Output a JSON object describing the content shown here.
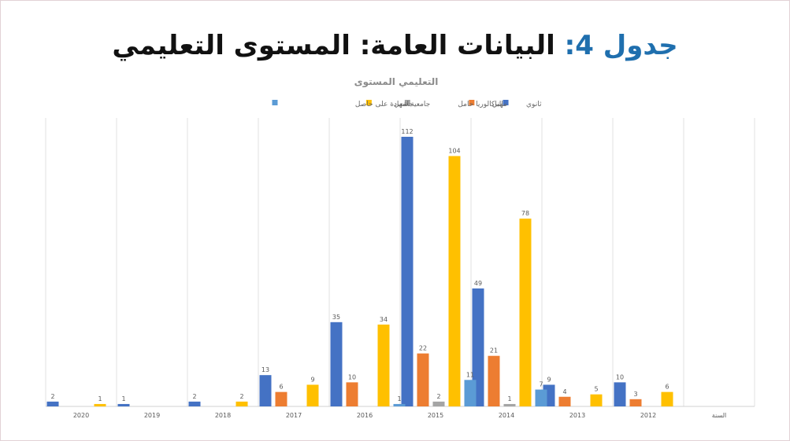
{
  "heading": {
    "lead": "جدول 4:",
    "rest": "البيانات العامة: المستوى التعليمي"
  },
  "chart_data": {
    "type": "bar",
    "title": "التعليمي المستوى",
    "categories": [
      "2020",
      "2019",
      "2018",
      "2017",
      "2016",
      "2015",
      "2014",
      "2013",
      "2012",
      "السنة"
    ],
    "ylim": [
      0,
      120
    ],
    "grid": "vertical-category-separators",
    "legend_position": "top-right",
    "series": [
      {
        "name": "ثانوي",
        "color": "#4472c4",
        "values": [
          2,
          1,
          2,
          13,
          35,
          112,
          49,
          9,
          10,
          null
        ]
      },
      {
        "name": "مهني",
        "color": "#ed7d31",
        "values": [
          null,
          null,
          null,
          6,
          10,
          22,
          21,
          4,
          3,
          null
        ]
      },
      {
        "name": "الباكالوريا حامل",
        "color": "#a5a5a5",
        "values": [
          null,
          null,
          null,
          null,
          null,
          2,
          1,
          null,
          null,
          null
        ]
      },
      {
        "name": "جامعي",
        "color": "#ffc000",
        "values": [
          1,
          null,
          2,
          9,
          34,
          104,
          78,
          5,
          6,
          null
        ]
      },
      {
        "name": "جامعية شهادة على حاصل",
        "color": "#5b9bd5",
        "values": [
          null,
          null,
          null,
          null,
          1,
          11,
          7,
          null,
          null,
          null
        ]
      }
    ]
  }
}
